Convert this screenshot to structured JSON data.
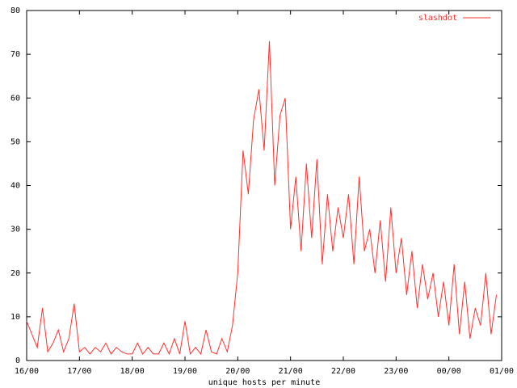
{
  "chart_data": {
    "type": "line",
    "xlabel": "unique hosts per minute",
    "x": [
      16.0,
      16.1,
      16.2,
      16.3,
      16.4,
      16.5,
      16.6,
      16.7,
      16.8,
      16.9,
      17.0,
      17.1,
      17.2,
      17.3,
      17.4,
      17.5,
      17.6,
      17.7,
      17.8,
      17.9,
      18.0,
      18.1,
      18.2,
      18.3,
      18.4,
      18.5,
      18.6,
      18.7,
      18.8,
      18.9,
      19.0,
      19.1,
      19.2,
      19.3,
      19.4,
      19.5,
      19.6,
      19.7,
      19.8,
      19.9,
      20.0,
      20.1,
      20.2,
      20.3,
      20.4,
      20.5,
      20.6,
      20.7,
      20.8,
      20.9,
      21.0,
      21.1,
      21.2,
      21.3,
      21.4,
      21.5,
      21.6,
      21.7,
      21.8,
      21.9,
      22.0,
      22.1,
      22.2,
      22.3,
      22.4,
      22.5,
      22.6,
      22.7,
      22.8,
      22.9,
      23.0,
      23.1,
      23.2,
      23.3,
      23.4,
      23.5,
      23.6,
      23.7,
      23.8,
      23.9,
      24.0,
      24.1,
      24.2,
      24.3,
      24.4,
      24.5,
      24.6,
      24.7,
      24.8,
      24.9
    ],
    "series": [
      {
        "name": "slashdot",
        "color": "#ff3030",
        "values": [
          9,
          6,
          3,
          12,
          2,
          4,
          7,
          2,
          5,
          13,
          2,
          3,
          1.5,
          3,
          2,
          4,
          1.5,
          3,
          2,
          1.5,
          1.5,
          4,
          1.5,
          3,
          1.5,
          1.5,
          4,
          1.5,
          5,
          1.5,
          9,
          1.5,
          3,
          1.5,
          7,
          2,
          1.5,
          5,
          2,
          8,
          20,
          48,
          38,
          55,
          62,
          48,
          73,
          40,
          56,
          60,
          30,
          42,
          25,
          45,
          28,
          46,
          22,
          38,
          25,
          35,
          28,
          38,
          22,
          42,
          25,
          30,
          20,
          32,
          18,
          35,
          20,
          28,
          15,
          25,
          12,
          22,
          14,
          20,
          10,
          18,
          8,
          22,
          6,
          18,
          5,
          12,
          8,
          20,
          6,
          15
        ]
      }
    ],
    "xlim": [
      16,
      25
    ],
    "xticks": [
      {
        "value": 16,
        "label": "16/00"
      },
      {
        "value": 17,
        "label": "17/00"
      },
      {
        "value": 18,
        "label": "18/00"
      },
      {
        "value": 19,
        "label": "19/00"
      },
      {
        "value": 20,
        "label": "20/00"
      },
      {
        "value": 21,
        "label": "21/00"
      },
      {
        "value": 22,
        "label": "22/00"
      },
      {
        "value": 23,
        "label": "23/00"
      },
      {
        "value": 24,
        "label": "00/00"
      },
      {
        "value": 25,
        "label": "01/00"
      }
    ],
    "ylim": [
      0,
      80
    ],
    "yticks": [
      0,
      10,
      20,
      30,
      40,
      50,
      60,
      70,
      80
    ],
    "legend": "top-right"
  }
}
